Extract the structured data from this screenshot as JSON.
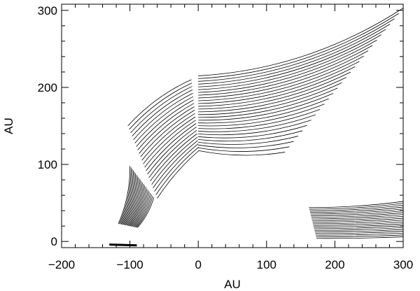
{
  "chart_data": {
    "type": "line",
    "title": "",
    "xlabel": "AU",
    "ylabel": "AU",
    "xlim": [
      -200,
      300
    ],
    "ylim": [
      -8,
      308
    ],
    "grid": false,
    "line_color": "#000000",
    "x_major_ticks": [
      -200,
      -100,
      0,
      100,
      200,
      300
    ],
    "x_tick_labels": [
      "−200",
      "−100",
      "0",
      "100",
      "200",
      "300"
    ],
    "x_minor_step": 20,
    "y_major_ticks": [
      0,
      100,
      200,
      300
    ],
    "y_tick_labels": [
      "0",
      "100",
      "200",
      "300"
    ],
    "y_minor_step": 20,
    "families": [
      {
        "name": "upper-right-arcs",
        "count": 28,
        "start": {
          "x": [
            0,
            0
          ],
          "y": [
            215,
            118
          ]
        },
        "end": {
          "x": [
            300,
            127
          ],
          "y": [
            303,
            116
          ]
        },
        "bulge": [
          -0.12,
          -0.08
        ],
        "slice_from_index": 4,
        "slice_t": 0.35
      },
      {
        "name": "upper-left-arcs",
        "count": 22,
        "start": {
          "x": [
            -103,
            -60
          ],
          "y": [
            150,
            56
          ]
        },
        "end": {
          "x": [
            -10,
            1
          ],
          "y": [
            210,
            118
          ]
        },
        "bulge": [
          0.1,
          0.07
        ]
      },
      {
        "name": "lower-left-arcs",
        "count": 22,
        "start": {
          "x": [
            -117,
            -89
          ],
          "y": [
            23,
            18
          ]
        },
        "end": {
          "x": [
            -100,
            -65
          ],
          "y": [
            98,
            57
          ]
        },
        "bulge": [
          -0.12,
          -0.12
        ]
      },
      {
        "name": "bottom-right-arcs",
        "count": 20,
        "start": {
          "x": [
            162,
            173
          ],
          "y": [
            44,
            4
          ]
        },
        "end": {
          "x": [
            300,
            300
          ],
          "y": [
            52,
            6
          ]
        },
        "bulge": [
          -0.03,
          -0.01
        ]
      },
      {
        "name": "bottom-left-streaks",
        "count": 8,
        "start": {
          "x": [
            -130,
            -130
          ],
          "y": [
            -3,
            -5
          ]
        },
        "end": {
          "x": [
            -90,
            -90
          ],
          "y": [
            -4,
            -6
          ]
        },
        "bulge": [
          0.0,
          0.0
        ]
      }
    ]
  }
}
